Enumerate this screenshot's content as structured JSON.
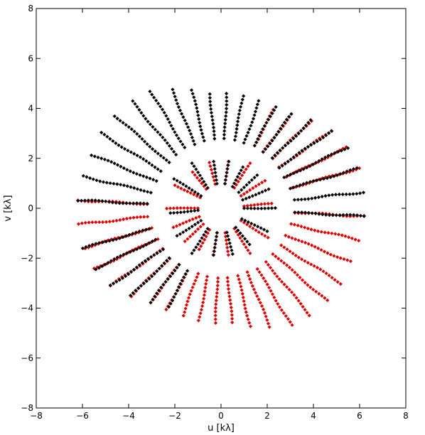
{
  "chart_data": {
    "type": "scatter",
    "title": "",
    "xlabel": "u [kλ]",
    "ylabel": "v [kλ]",
    "xlim": [
      -8,
      8
    ],
    "ylim": [
      -8,
      8
    ],
    "xticks": [
      -8,
      -6,
      -4,
      -2,
      0,
      2,
      4,
      6,
      8
    ],
    "yticks": [
      -8,
      -6,
      -4,
      -2,
      0,
      2,
      4,
      6,
      8
    ],
    "xtick_labels": [
      "−8",
      "−6",
      "−4",
      "−2",
      "0",
      "2",
      "4",
      "6",
      "8"
    ],
    "ytick_labels": [
      "−8",
      "−6",
      "−4",
      "−2",
      "0",
      "2",
      "4",
      "6",
      "8"
    ],
    "grid": false,
    "legend": "none",
    "marker": "diamond",
    "colors": {
      "series_a": "#000000",
      "series_b": "#e00000",
      "frame": "#000000"
    },
    "description_of_pattern": "uv-coverage: radial spoke tracks forming an annulus from |uv|≈1 to ≈6.3 kλ; each track is mirrored through the origin in the other colour",
    "series": [
      {
        "color": "#000000",
        "tracks": [
          {
            "angle_deg": 177,
            "r_start": 3.2,
            "r_end": 6.3
          },
          {
            "angle_deg": 168,
            "r_start": 3.1,
            "r_end": 6.2
          },
          {
            "angle_deg": 159,
            "r_start": 3.0,
            "r_end": 6.1
          },
          {
            "angle_deg": 150,
            "r_start": 3.0,
            "r_end": 6.0
          },
          {
            "angle_deg": 141,
            "r_start": 2.9,
            "r_end": 5.9
          },
          {
            "angle_deg": 132,
            "r_start": 2.9,
            "r_end": 5.8
          },
          {
            "angle_deg": 123,
            "r_start": 2.9,
            "r_end": 5.6
          },
          {
            "angle_deg": 114,
            "r_start": 2.8,
            "r_end": 5.2
          },
          {
            "angle_deg": 105,
            "r_start": 2.8,
            "r_end": 4.9
          },
          {
            "angle_deg": 96,
            "r_start": 2.8,
            "r_end": 4.7
          },
          {
            "angle_deg": 87,
            "r_start": 2.8,
            "r_end": 4.7
          },
          {
            "angle_deg": 78,
            "r_start": 2.8,
            "r_end": 4.7
          },
          {
            "angle_deg": 69,
            "r_start": 2.8,
            "r_end": 4.6
          },
          {
            "angle_deg": 60,
            "r_start": 2.9,
            "r_end": 4.7
          },
          {
            "angle_deg": 51,
            "r_start": 2.9,
            "r_end": 4.9
          },
          {
            "angle_deg": 42,
            "r_start": 3.0,
            "r_end": 5.3
          },
          {
            "angle_deg": 33,
            "r_start": 3.0,
            "r_end": 5.7
          },
          {
            "angle_deg": 24,
            "r_start": 3.0,
            "r_end": 6.0
          },
          {
            "angle_deg": 15,
            "r_start": 3.1,
            "r_end": 6.2
          },
          {
            "angle_deg": 6,
            "r_start": 3.2,
            "r_end": 6.2
          },
          {
            "angle_deg": -3,
            "r_start": 3.2,
            "r_end": 6.3
          },
          {
            "angle_deg": 195,
            "r_start": 3.2,
            "r_end": 6.2
          },
          {
            "angle_deg": 204,
            "r_start": 3.1,
            "r_end": 6.0
          },
          {
            "angle_deg": 213,
            "r_start": 3.0,
            "r_end": 5.7
          },
          {
            "angle_deg": 222,
            "r_start": 3.0,
            "r_end": 5.3
          },
          {
            "angle_deg": 231,
            "r_start": 2.9,
            "r_end": 4.9
          },
          {
            "angle_deg": 240,
            "r_start": 2.9,
            "r_end": 4.6
          },
          {
            "angle_deg": 150,
            "r_start": 1.0,
            "r_end": 2.4
          },
          {
            "angle_deg": 125,
            "r_start": 1.0,
            "r_end": 2.2
          },
          {
            "angle_deg": 100,
            "r_start": 1.0,
            "r_end": 2.0
          },
          {
            "angle_deg": 80,
            "r_start": 1.0,
            "r_end": 1.9
          },
          {
            "angle_deg": 60,
            "r_start": 1.0,
            "r_end": 2.0
          },
          {
            "angle_deg": 40,
            "r_start": 1.0,
            "r_end": 2.1
          },
          {
            "angle_deg": 20,
            "r_start": 1.0,
            "r_end": 2.3
          },
          {
            "angle_deg": 0,
            "r_start": 1.0,
            "r_end": 2.4
          },
          {
            "angle_deg": 185,
            "r_start": 1.0,
            "r_end": 2.3
          },
          {
            "angle_deg": 210,
            "r_start": 1.0,
            "r_end": 2.3
          },
          {
            "angle_deg": 235,
            "r_start": 1.0,
            "r_end": 2.2
          },
          {
            "angle_deg": 260,
            "r_start": 1.0,
            "r_end": 2.0
          },
          {
            "angle_deg": 285,
            "r_start": 1.0,
            "r_end": 1.9
          },
          {
            "angle_deg": 310,
            "r_start": 1.0,
            "r_end": 2.0
          },
          {
            "angle_deg": 335,
            "r_start": 1.0,
            "r_end": 2.3
          }
        ]
      },
      {
        "color": "#e00000",
        "mirror_of_series": 0,
        "note": "point-symmetric copy: (u, v) -> (-u, -v)"
      }
    ]
  }
}
